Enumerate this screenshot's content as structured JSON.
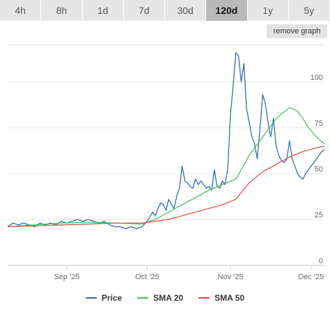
{
  "tabs": [
    {
      "label": "4h"
    },
    {
      "label": "8h"
    },
    {
      "label": "1d"
    },
    {
      "label": "7d"
    },
    {
      "label": "30d"
    },
    {
      "label": "120d"
    },
    {
      "label": "1y"
    },
    {
      "label": "5y"
    }
  ],
  "active_tab": "120d",
  "remove_graph_label": "remove graph",
  "colors": {
    "price": "#2f6fb0",
    "sma20": "#3dbf5a",
    "sma50": "#e5473a",
    "grid": "#e6e6e6",
    "axis_text": "#666666"
  },
  "chart_data": {
    "type": "line",
    "title": "",
    "xlabel": "",
    "ylabel": "",
    "ylim": [
      0,
      120
    ],
    "yticks": [
      0,
      25,
      50,
      75,
      100
    ],
    "y_axis_side": "right",
    "x_tick_labels": [
      {
        "label": "Sep '25",
        "day": 22
      },
      {
        "label": "Oct '25",
        "day": 52
      },
      {
        "label": "Nov '25",
        "day": 83
      },
      {
        "label": "Dec '25",
        "day": 113
      }
    ],
    "xlim": [
      0,
      118
    ],
    "grid": "horizontal",
    "legend_position": "bottom",
    "legend": [
      "Price",
      "SMA 20",
      "SMA 50"
    ],
    "series": [
      {
        "name": "Price",
        "x": [
          0,
          2,
          4,
          6,
          8,
          10,
          12,
          14,
          16,
          18,
          20,
          22,
          24,
          26,
          28,
          30,
          32,
          34,
          36,
          38,
          40,
          42,
          44,
          46,
          48,
          50,
          52,
          54,
          55,
          56,
          57,
          58,
          59,
          60,
          61,
          62,
          63,
          64,
          65,
          66,
          67,
          68,
          69,
          70,
          71,
          72,
          73,
          74,
          75,
          76,
          77,
          78,
          79,
          80,
          81,
          82,
          83,
          84,
          85,
          86,
          87,
          88,
          89,
          90,
          91,
          92,
          93,
          94,
          95,
          96,
          97,
          98,
          99,
          100,
          101,
          102,
          103,
          104,
          105,
          106,
          107,
          108,
          109,
          110,
          111,
          112,
          113,
          114,
          115,
          116,
          117,
          118
        ],
        "values": [
          21,
          23,
          22,
          23,
          22,
          21,
          23,
          22,
          23,
          22,
          24,
          23,
          24,
          25,
          24,
          25,
          24,
          23,
          24,
          22,
          21,
          21,
          20,
          21,
          20,
          21,
          24,
          29,
          27,
          31,
          34,
          33,
          30,
          36,
          33,
          31,
          38,
          42,
          54,
          46,
          45,
          43,
          42,
          47,
          44,
          46,
          44,
          42,
          43,
          41,
          52,
          43,
          42,
          46,
          44,
          53,
          82,
          98,
          116,
          114,
          100,
          110,
          85,
          78,
          70,
          66,
          58,
          75,
          93,
          88,
          78,
          70,
          80,
          65,
          60,
          57,
          56,
          58,
          68,
          58,
          54,
          50,
          48,
          47,
          50,
          52,
          54,
          56,
          58,
          60,
          62,
          63
        ],
        "x_note": "days"
      },
      {
        "name": "SMA 20",
        "x": [
          0,
          10,
          20,
          30,
          40,
          50,
          55,
          60,
          65,
          70,
          75,
          80,
          85,
          90,
          95,
          100,
          105,
          108,
          110,
          112,
          115,
          118
        ],
        "values": [
          21,
          22,
          23,
          23.5,
          23,
          22.5,
          25,
          29,
          33,
          37,
          41,
          44,
          47,
          60,
          70,
          80,
          86,
          84,
          80,
          75,
          70,
          66
        ]
      },
      {
        "name": "SMA 50",
        "x": [
          0,
          10,
          20,
          30,
          40,
          50,
          55,
          60,
          65,
          70,
          75,
          80,
          85,
          90,
          95,
          100,
          105,
          110,
          115,
          118
        ],
        "values": [
          21,
          21.5,
          22,
          22.5,
          23,
          23,
          24,
          25,
          27,
          29,
          31,
          33,
          36,
          45,
          51,
          55,
          59,
          62,
          64,
          65
        ]
      }
    ]
  }
}
